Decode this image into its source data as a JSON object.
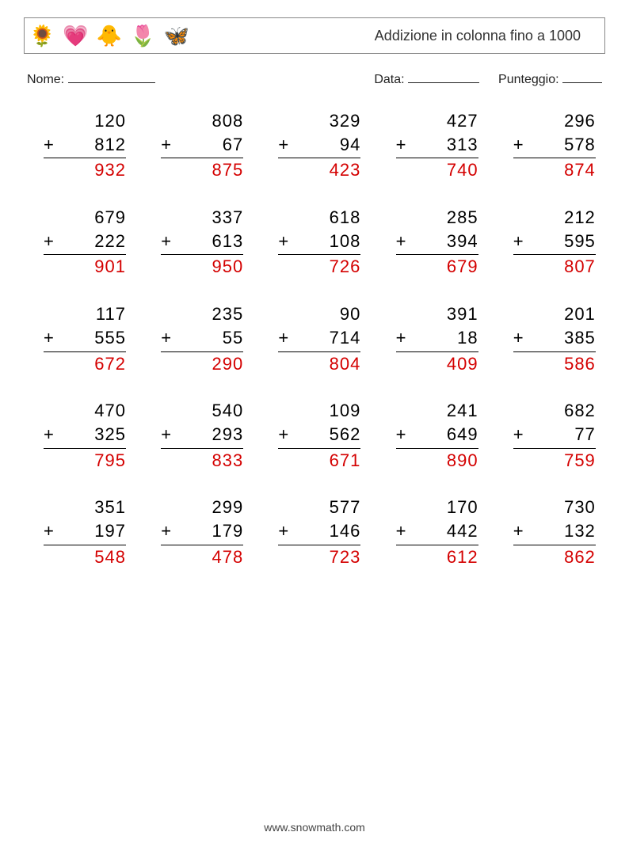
{
  "header": {
    "title": "Addizione in colonna fino a 1000",
    "icons": [
      "🌻",
      "💗",
      "🐥",
      "🌷",
      "🦋"
    ]
  },
  "meta": {
    "name_label": "Nome:",
    "date_label": "Data:",
    "score_label": "Punteggio:"
  },
  "style": {
    "answer_color": "#d40000",
    "text_color": "#000000",
    "border_color": "#888888",
    "font_size_problem": 22,
    "font_size_title": 18,
    "font_size_meta": 16,
    "cols": 5,
    "rows": 5
  },
  "problems": [
    {
      "a": "120",
      "b": "812",
      "ans": "932"
    },
    {
      "a": "808",
      "b": "67",
      "ans": "875"
    },
    {
      "a": "329",
      "b": "94",
      "ans": "423"
    },
    {
      "a": "427",
      "b": "313",
      "ans": "740"
    },
    {
      "a": "296",
      "b": "578",
      "ans": "874"
    },
    {
      "a": "679",
      "b": "222",
      "ans": "901"
    },
    {
      "a": "337",
      "b": "613",
      "ans": "950"
    },
    {
      "a": "618",
      "b": "108",
      "ans": "726"
    },
    {
      "a": "285",
      "b": "394",
      "ans": "679"
    },
    {
      "a": "212",
      "b": "595",
      "ans": "807"
    },
    {
      "a": "117",
      "b": "555",
      "ans": "672"
    },
    {
      "a": "235",
      "b": "55",
      "ans": "290"
    },
    {
      "a": "90",
      "b": "714",
      "ans": "804"
    },
    {
      "a": "391",
      "b": "18",
      "ans": "409"
    },
    {
      "a": "201",
      "b": "385",
      "ans": "586"
    },
    {
      "a": "470",
      "b": "325",
      "ans": "795"
    },
    {
      "a": "540",
      "b": "293",
      "ans": "833"
    },
    {
      "a": "109",
      "b": "562",
      "ans": "671"
    },
    {
      "a": "241",
      "b": "649",
      "ans": "890"
    },
    {
      "a": "682",
      "b": "77",
      "ans": "759"
    },
    {
      "a": "351",
      "b": "197",
      "ans": "548"
    },
    {
      "a": "299",
      "b": "179",
      "ans": "478"
    },
    {
      "a": "577",
      "b": "146",
      "ans": "723"
    },
    {
      "a": "170",
      "b": "442",
      "ans": "612"
    },
    {
      "a": "730",
      "b": "132",
      "ans": "862"
    }
  ],
  "footer": {
    "url": "www.snowmath.com"
  }
}
